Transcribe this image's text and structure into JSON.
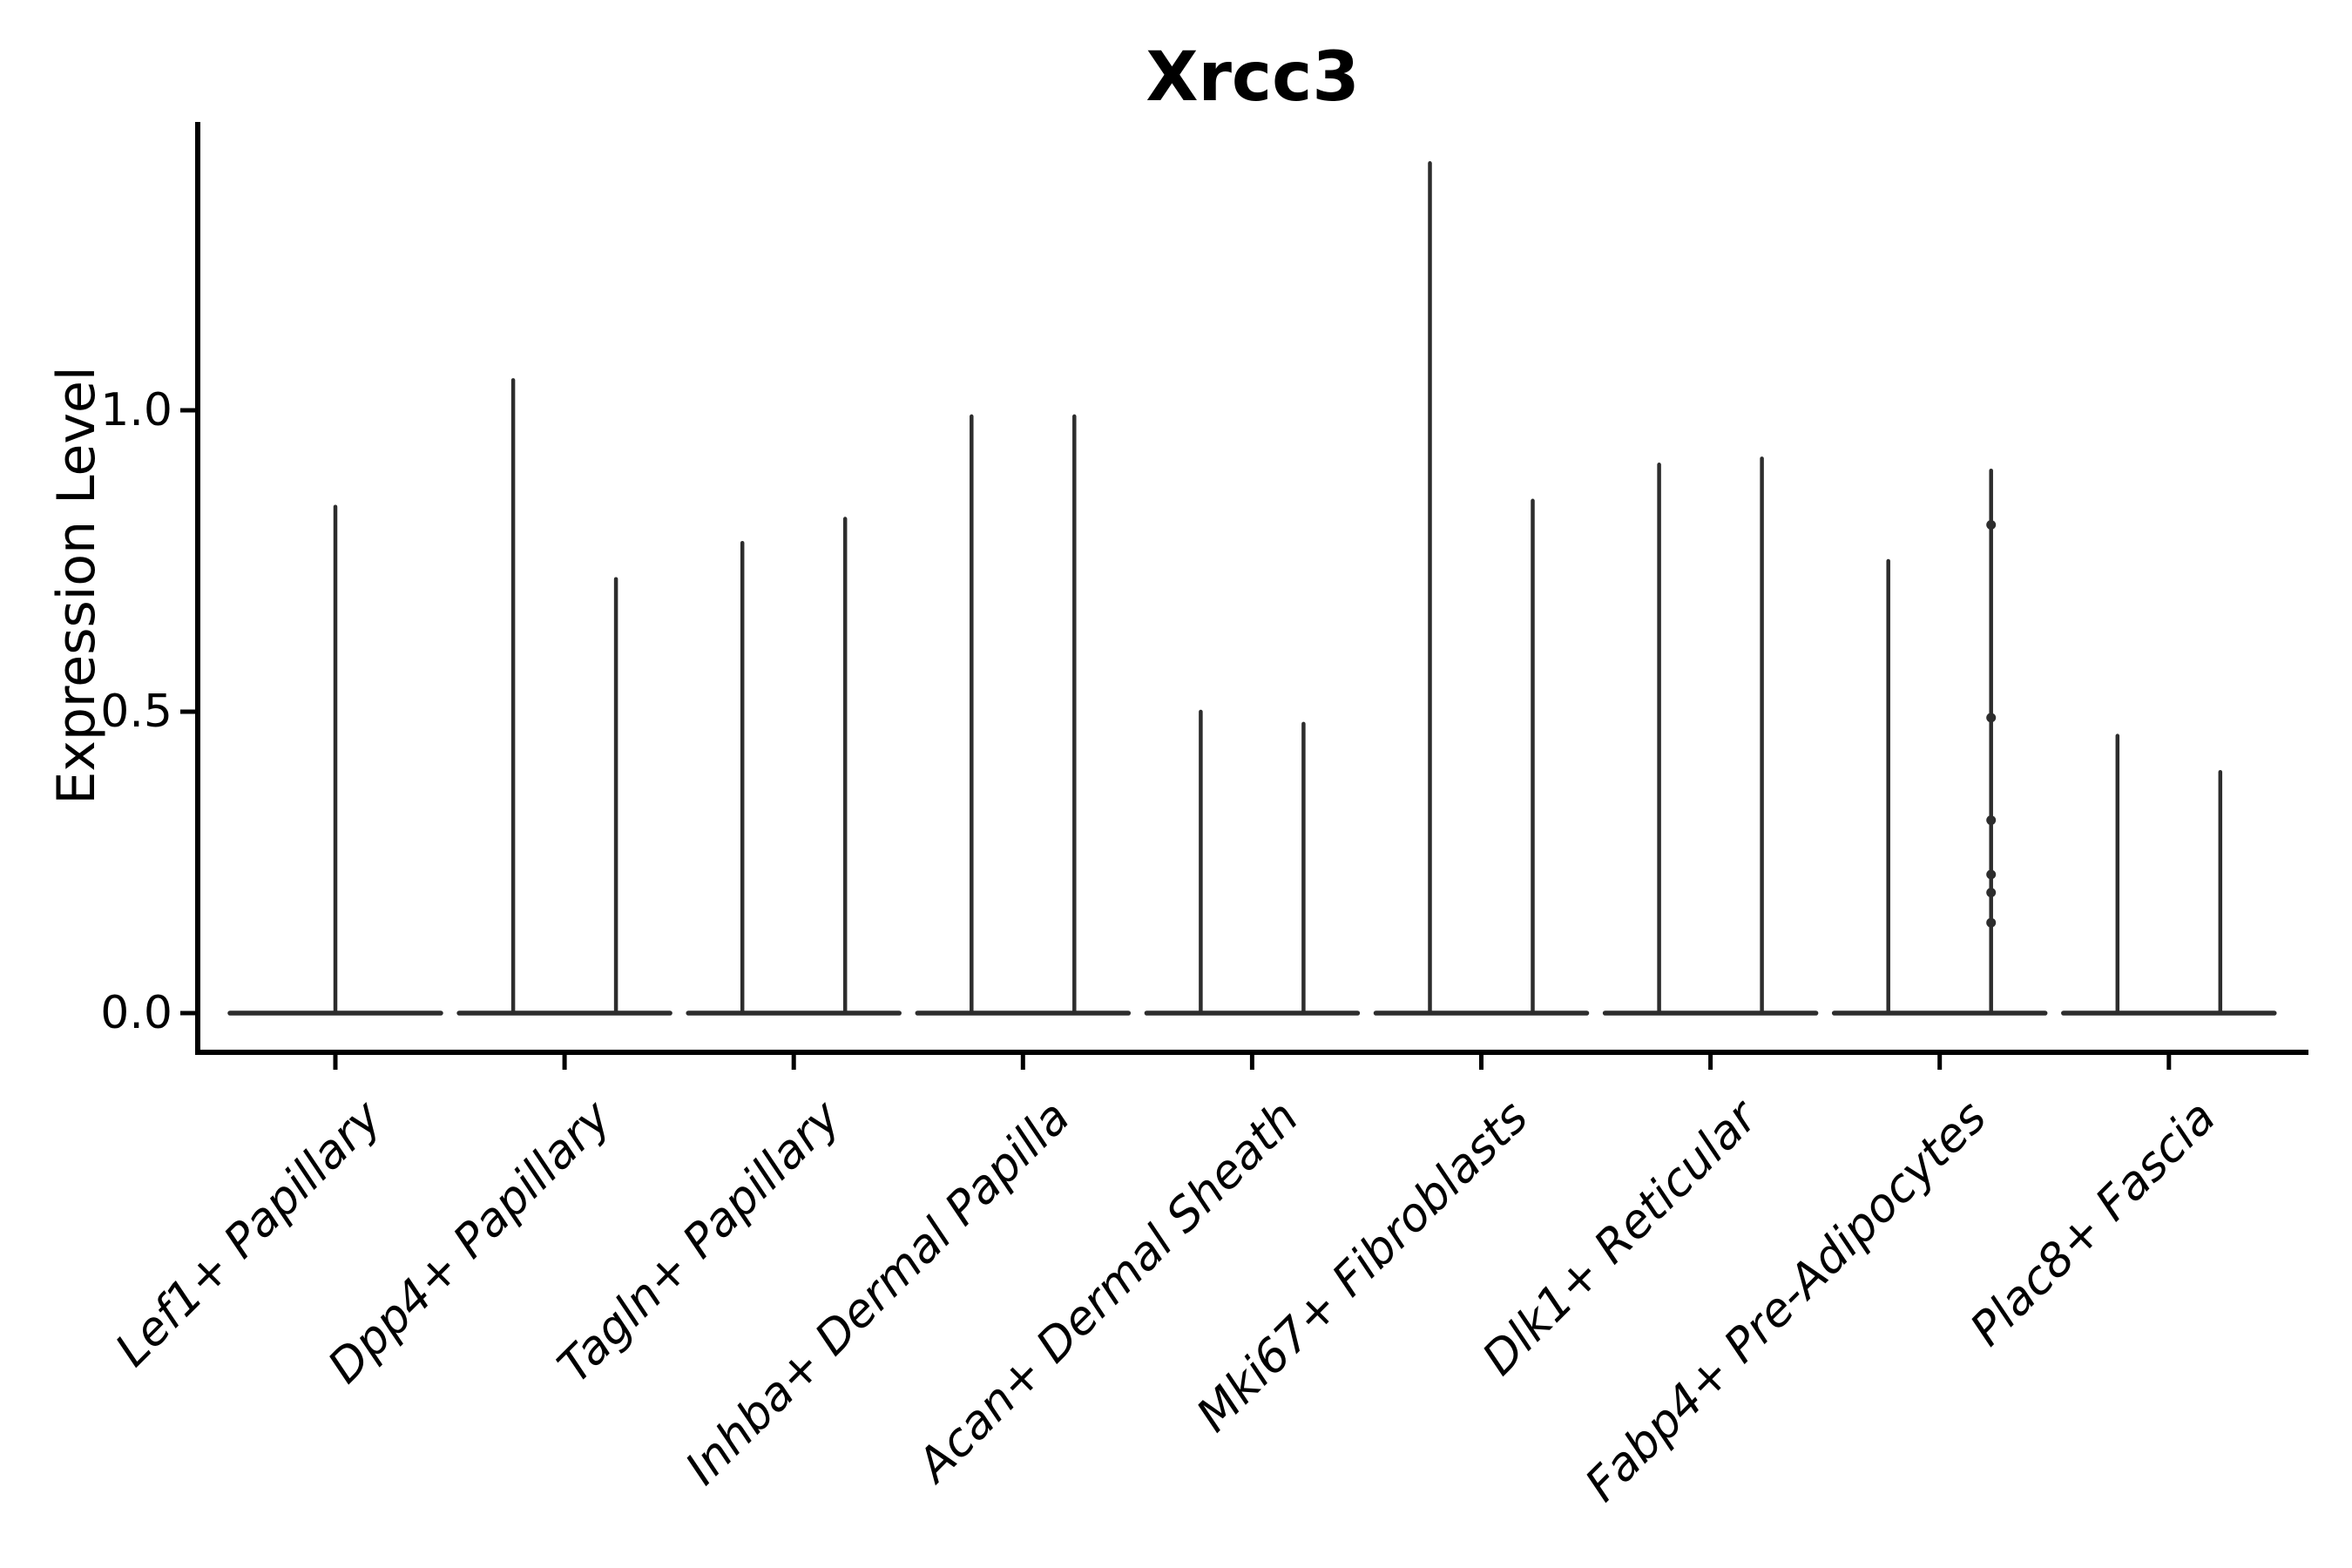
{
  "chart_data": {
    "type": "violin",
    "title": "Xrcc3",
    "xlabel": "",
    "ylabel": "Expression Level",
    "categories": [
      "Lef1+ Papillary",
      "Dpp4+ Papillary",
      "Tagln+ Papillary",
      "Inhba+ Dermal Papilla",
      "Acan+ Dermal Sheath",
      "Mki67+ Fibroblasts",
      "Dlk1+ Reticular",
      "Fabp4+ Pre-Adipocytes",
      "Plac8+ Fascia"
    ],
    "ylim": [
      0,
      1.47
    ],
    "yticks": [
      {
        "value": 0.0,
        "label": "0.0"
      },
      {
        "value": 0.5,
        "label": "0.5"
      },
      {
        "value": 1.0,
        "label": "1.0"
      }
    ],
    "grid": false,
    "legend": "none",
    "line_color": "#2d2d2d",
    "axis_color": "#000000",
    "violins": [
      {
        "category": "Lef1+ Papillary",
        "max_values": [
          0.84
        ]
      },
      {
        "category": "Dpp4+ Papillary",
        "max_values": [
          1.05,
          0.72
        ]
      },
      {
        "category": "Tagln+ Papillary",
        "max_values": [
          0.78,
          0.82
        ]
      },
      {
        "category": "Inhba+ Dermal Papilla",
        "max_values": [
          0.99,
          0.99
        ]
      },
      {
        "category": "Acan+ Dermal Sheath",
        "max_values": [
          0.5,
          0.48
        ]
      },
      {
        "category": "Mki67+ Fibroblasts",
        "max_values": [
          1.41,
          0.85
        ]
      },
      {
        "category": "Dlk1+ Reticular",
        "max_values": [
          0.91,
          0.92
        ]
      },
      {
        "category": "Fabp4+ Pre-Adipocytes",
        "max_values": [
          0.75,
          0.9
        ]
      },
      {
        "category": "Plac8+ Fascia",
        "max_values": [
          0.46,
          0.4
        ]
      }
    ],
    "overlay_points": [
      {
        "category": "Fabp4+ Pre-Adipocytes",
        "violin_index": 1,
        "values": [
          0.81,
          0.49,
          0.32,
          0.23,
          0.2,
          0.15
        ]
      }
    ]
  }
}
